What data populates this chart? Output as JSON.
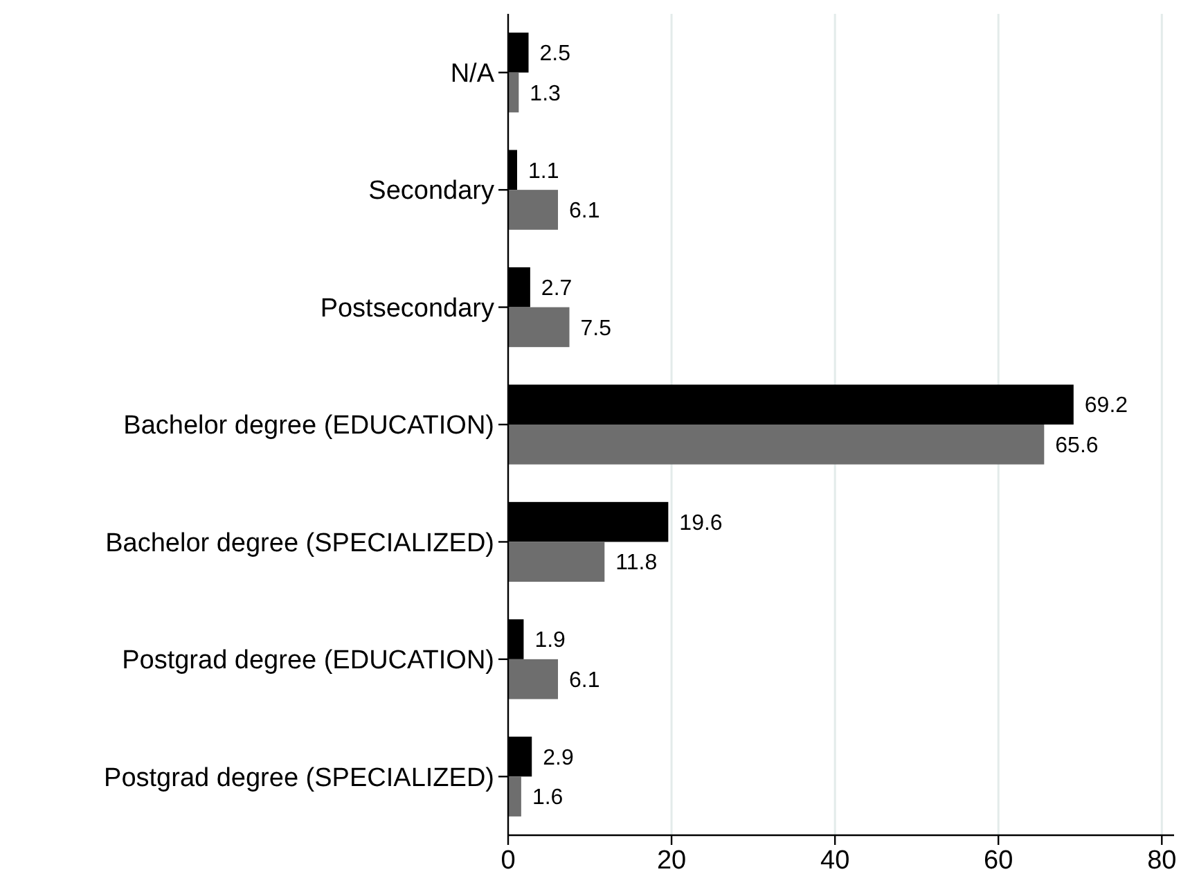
{
  "chart_data": {
    "type": "bar",
    "orientation": "horizontal",
    "categories": [
      "N/A",
      "Secondary",
      "Postsecondary",
      "Bachelor degree (EDUCATION)",
      "Bachelor degree (SPECIALIZED)",
      "Postgrad degree (EDUCATION)",
      "Postgrad degree (SPECIALIZED)"
    ],
    "series": [
      {
        "color": "#000000",
        "values": [
          2.5,
          1.1,
          2.7,
          69.2,
          19.6,
          1.9,
          2.9
        ]
      },
      {
        "color": "#6e6e6e",
        "values": [
          1.3,
          6.1,
          7.5,
          65.6,
          11.8,
          6.1,
          1.6
        ]
      }
    ],
    "xlim": [
      0,
      81.5
    ],
    "xticks": [
      0,
      20,
      40,
      60,
      80
    ],
    "grid": "x",
    "data_labels": true
  }
}
